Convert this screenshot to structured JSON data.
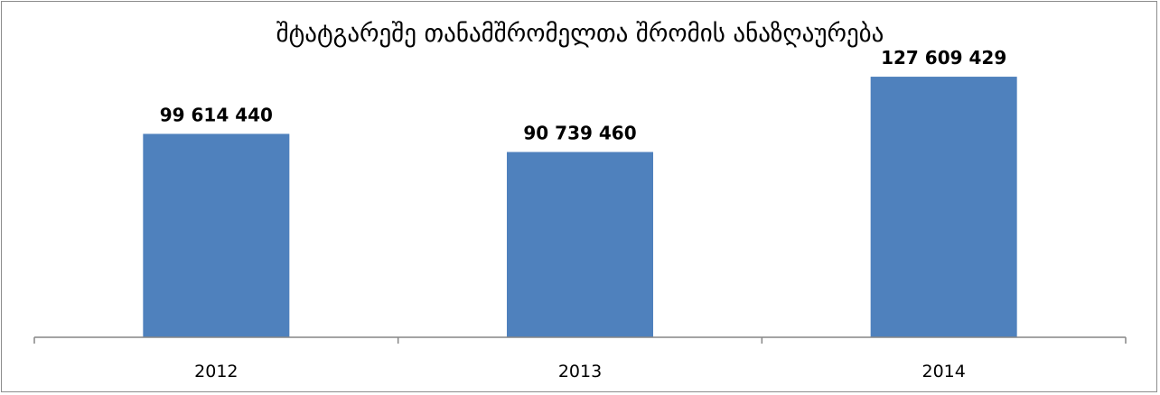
{
  "chart_data": {
    "type": "bar",
    "title": "შტატგარეშე თანამშრომელთა შრომის ანაზღაურება",
    "categories": [
      "2012",
      "2013",
      "2014"
    ],
    "values": [
      99614440,
      90739460,
      127609429
    ],
    "data_labels": [
      "99 614 440",
      "90 739 460",
      "127 609 429"
    ],
    "xlabel": "",
    "ylabel": "",
    "ylim": [
      0,
      140000000
    ],
    "grid": false,
    "legend": "none",
    "bar_color": "#4f81bd",
    "axis_color": "#868686"
  }
}
